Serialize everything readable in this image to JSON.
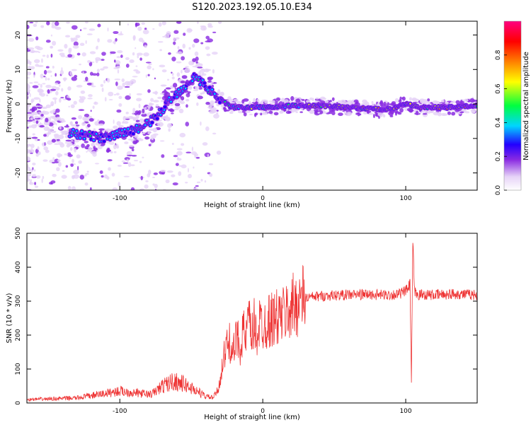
{
  "chart_data": [
    {
      "type": "heatmap",
      "title": "S120.2023.192.05.10.E34",
      "xlabel": "Height of straight line (km)",
      "ylabel": "Frequency (Hz)",
      "xlim": [
        -165,
        150
      ],
      "ylim": [
        -25,
        24
      ],
      "x_ticks": [
        -100,
        0,
        100
      ],
      "y_ticks": [
        20,
        10,
        0,
        -10,
        -20
      ],
      "colorbar": {
        "label": "Normalized spectral amplitude",
        "range": [
          0,
          1
        ],
        "ticks": [
          0.0,
          0.2,
          0.4,
          0.6,
          0.8
        ],
        "colors": [
          "#ffffff",
          "#e6d3f7",
          "#8a2be2",
          "#2200ff",
          "#00d5ff",
          "#00ff40",
          "#ffff00",
          "#ff8000",
          "#ff0000",
          "#ff0080"
        ]
      },
      "ridge": {
        "x": [
          -160,
          -140,
          -125,
          -110,
          -95,
          -85,
          -75,
          -65,
          -55,
          -48,
          -42,
          -35,
          -28,
          -22,
          -15,
          -5,
          0,
          20,
          40,
          60,
          80,
          90,
          100,
          110,
          130,
          150
        ],
        "y": [
          -5,
          -8,
          -9,
          -10,
          -8,
          -7,
          -4,
          1,
          5,
          8,
          6,
          3,
          1,
          -1,
          -1,
          -1,
          -1,
          -0.5,
          -0.5,
          -1,
          -1.5,
          -1.5,
          0,
          -1,
          -1,
          -0.5
        ]
      }
    },
    {
      "type": "line",
      "title": "",
      "xlabel": "Height of straight line (km)",
      "ylabel": "SNR (10 * v/v)",
      "xlim": [
        -165,
        150
      ],
      "ylim": [
        0,
        500
      ],
      "x_ticks": [
        -100,
        0,
        100
      ],
      "y_ticks": [
        0,
        100,
        200,
        300,
        400,
        500
      ],
      "series": [
        {
          "name": "",
          "color": "#ee3333",
          "x": [
            -165,
            -150,
            -130,
            -115,
            -100,
            -90,
            -78,
            -70,
            -62,
            -55,
            -48,
            -40,
            -35,
            -31,
            -28,
            -25,
            -22,
            -20,
            -18,
            -16,
            -14,
            -12,
            -10,
            -8,
            -6,
            -4,
            -2,
            0,
            5,
            10,
            15,
            20,
            25,
            30,
            40,
            55,
            70,
            85,
            95,
            100,
            102,
            103,
            104,
            105,
            106,
            108,
            112,
            120,
            135,
            150
          ],
          "y": [
            10,
            12,
            15,
            25,
            35,
            30,
            25,
            50,
            65,
            55,
            40,
            20,
            15,
            40,
            120,
            170,
            180,
            150,
            200,
            160,
            220,
            180,
            250,
            190,
            230,
            200,
            240,
            230,
            245,
            250,
            260,
            280,
            300,
            310,
            315,
            318,
            320,
            318,
            320,
            330,
            340,
            350,
            60,
            480,
            330,
            318,
            320,
            318,
            322,
            318
          ]
        }
      ]
    }
  ]
}
